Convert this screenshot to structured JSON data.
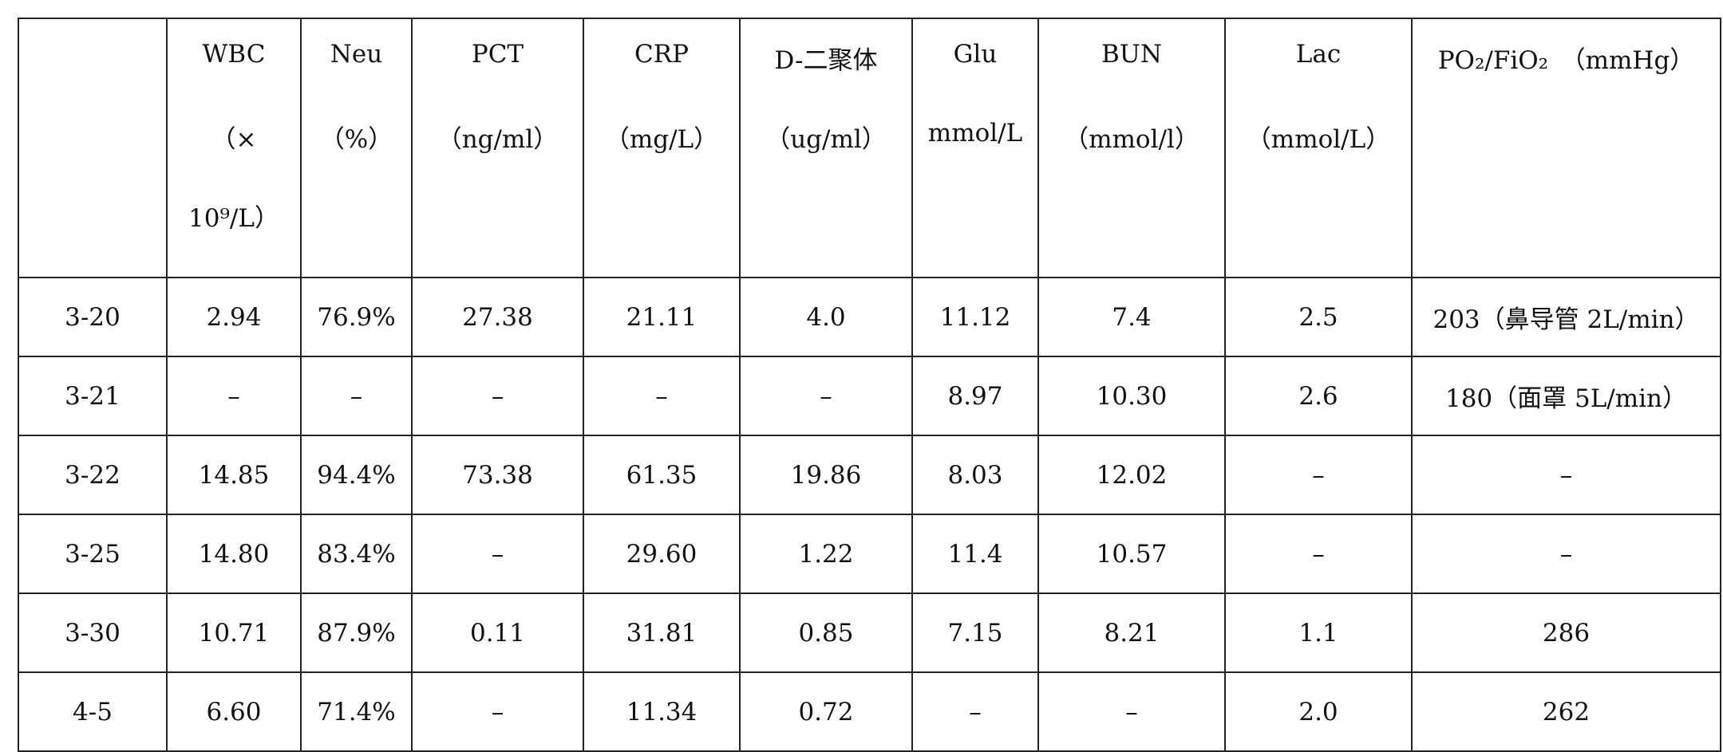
{
  "table": {
    "header": [
      [
        "WBC",
        "（×",
        "10⁹/L）"
      ],
      [
        "Neu",
        "（%）"
      ],
      [
        "PCT",
        "（ng/ml）"
      ],
      [
        "CRP",
        "（mg/L）"
      ],
      [
        "D-二聚体",
        "（ug/ml）"
      ],
      [
        "Glu",
        "mmol/L"
      ],
      [
        "BUN",
        "（mmol/l）"
      ],
      [
        "Lac",
        "（mmol/L）"
      ],
      [
        "PO₂/FiO₂　（mmHg）"
      ]
    ],
    "rows": [
      [
        "3-20",
        "2.94",
        "76.9%",
        "27.38",
        "21.11",
        "4.0",
        "11.12",
        "7.4",
        "2.5",
        "203（鼻导管 2L/min）"
      ],
      [
        "3-21",
        "–",
        "–",
        "–",
        "–",
        "–",
        "8.97",
        "10.30",
        "2.6",
        "180（面罩 5L/min）"
      ],
      [
        "3-22",
        "14.85",
        "94.4%",
        "73.38",
        "61.35",
        "19.86",
        "8.03",
        "12.02",
        "–",
        "–"
      ],
      [
        "3-25",
        "14.80",
        "83.4%",
        "–",
        "29.60",
        "1.22",
        "11.4",
        "10.57",
        "–",
        "–"
      ],
      [
        "3-30",
        "10.71",
        "87.9%",
        "0.11",
        "31.81",
        "0.85",
        "7.15",
        "8.21",
        "1.1",
        "286"
      ],
      [
        "4-5",
        "6.60",
        "71.4%",
        "–",
        "11.34",
        "0.72",
        "–",
        "–",
        "2.0",
        "262"
      ]
    ]
  }
}
